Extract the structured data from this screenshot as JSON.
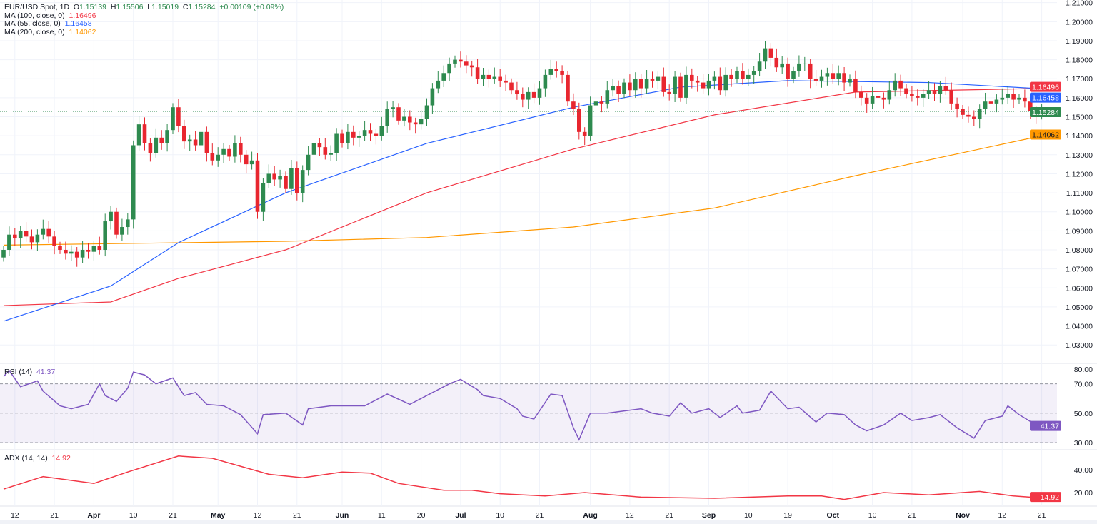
{
  "legend": {
    "symbol": "EUR/USD Spot, 1D",
    "open_label": "O",
    "open": "1.15139",
    "high_label": "H",
    "high": "1.15506",
    "low_label": "L",
    "low": "1.15019",
    "close_label": "C",
    "close": "1.15284",
    "change": "+0.00109 (+0.09%)",
    "ma100_label": "MA (100, close, 0)",
    "ma100_value": "1.16496",
    "ma55_label": "MA (55, close, 0)",
    "ma55_value": "1.16458",
    "ma200_label": "MA (200, close, 0)",
    "ma200_value": "1.14062"
  },
  "rsi_pane": {
    "label": "RSI (14)",
    "value": "41.37"
  },
  "adx_pane": {
    "label": "ADX (14, 14)",
    "value": "14.92"
  },
  "colors": {
    "up": "#2e8a4f",
    "down": "#e8262f",
    "ma100": "#f23645",
    "ma55": "#2962ff",
    "ma200": "#ff9800",
    "rsi": "#7e57c2",
    "adx": "#f23645"
  },
  "chart_data": [
    {
      "type": "candlestick",
      "ylim": [
        1.025,
        1.212
      ],
      "y_ticks": [
        "1.03000",
        "1.04000",
        "1.05000",
        "1.06000",
        "1.07000",
        "1.08000",
        "1.09000",
        "1.10000",
        "1.11000",
        "1.12000",
        "1.13000",
        "1.14000",
        "1.15000",
        "1.16000",
        "1.17000",
        "1.18000",
        "1.19000",
        "1.20000",
        "1.21000"
      ],
      "x_ticks": [
        {
          "label": "12",
          "index": 2
        },
        {
          "label": "21",
          "index": 9
        },
        {
          "label": "Apr",
          "index": 16,
          "bold": true
        },
        {
          "label": "10",
          "index": 23
        },
        {
          "label": "21",
          "index": 30
        },
        {
          "label": "May",
          "index": 38,
          "bold": true
        },
        {
          "label": "12",
          "index": 45
        },
        {
          "label": "21",
          "index": 52
        },
        {
          "label": "Jun",
          "index": 60,
          "bold": true
        },
        {
          "label": "11",
          "index": 67
        },
        {
          "label": "20",
          "index": 74
        },
        {
          "label": "Jul",
          "index": 81,
          "bold": true
        },
        {
          "label": "10",
          "index": 88
        },
        {
          "label": "21",
          "index": 95
        },
        {
          "label": "Aug",
          "index": 104,
          "bold": true
        },
        {
          "label": "12",
          "index": 111
        },
        {
          "label": "21",
          "index": 118
        },
        {
          "label": "Sep",
          "index": 125,
          "bold": true
        },
        {
          "label": "10",
          "index": 132
        },
        {
          "label": "19",
          "index": 139
        },
        {
          "label": "Oct",
          "index": 147,
          "bold": true
        },
        {
          "label": "10",
          "index": 154
        },
        {
          "label": "21",
          "index": 161
        },
        {
          "label": "Nov",
          "index": 170,
          "bold": true
        },
        {
          "label": "12",
          "index": 177
        },
        {
          "label": "21",
          "index": 184
        }
      ],
      "last_open": 1.15139,
      "last_high": 1.15506,
      "last_low": 1.15019,
      "closes": [
        1.08,
        1.088,
        1.086,
        1.09,
        1.087,
        1.084,
        1.088,
        1.091,
        1.087,
        1.082,
        1.08,
        1.078,
        1.079,
        1.076,
        1.08,
        1.079,
        1.082,
        1.08,
        1.095,
        1.1,
        1.088,
        1.092,
        1.096,
        1.135,
        1.146,
        1.136,
        1.131,
        1.139,
        1.136,
        1.143,
        1.155,
        1.145,
        1.137,
        1.138,
        1.135,
        1.142,
        1.131,
        1.127,
        1.13,
        1.133,
        1.129,
        1.136,
        1.13,
        1.125,
        1.127,
        1.1,
        1.115,
        1.12,
        1.117,
        1.119,
        1.112,
        1.123,
        1.11,
        1.122,
        1.13,
        1.136,
        1.134,
        1.13,
        1.131,
        1.141,
        1.136,
        1.142,
        1.139,
        1.14,
        1.143,
        1.141,
        1.14,
        1.145,
        1.154,
        1.155,
        1.148,
        1.15,
        1.147,
        1.146,
        1.149,
        1.156,
        1.165,
        1.169,
        1.173,
        1.178,
        1.18,
        1.179,
        1.177,
        1.176,
        1.17,
        1.172,
        1.17,
        1.171,
        1.169,
        1.168,
        1.164,
        1.162,
        1.159,
        1.163,
        1.16,
        1.165,
        1.172,
        1.175,
        1.174,
        1.172,
        1.158,
        1.154,
        1.142,
        1.14,
        1.156,
        1.158,
        1.157,
        1.164,
        1.166,
        1.162,
        1.168,
        1.164,
        1.17,
        1.165,
        1.17,
        1.169,
        1.171,
        1.163,
        1.162,
        1.171,
        1.16,
        1.172,
        1.169,
        1.168,
        1.165,
        1.169,
        1.171,
        1.164,
        1.172,
        1.17,
        1.174,
        1.17,
        1.172,
        1.174,
        1.179,
        1.186,
        1.181,
        1.176,
        1.178,
        1.17,
        1.174,
        1.178,
        1.178,
        1.17,
        1.169,
        1.171,
        1.173,
        1.17,
        1.173,
        1.168,
        1.17,
        1.163,
        1.16,
        1.157,
        1.161,
        1.16,
        1.159,
        1.164,
        1.169,
        1.165,
        1.162,
        1.161,
        1.16,
        1.162,
        1.164,
        1.162,
        1.166,
        1.164,
        1.157,
        1.154,
        1.151,
        1.15,
        1.149,
        1.154,
        1.158,
        1.157,
        1.159,
        1.16,
        1.162,
        1.159,
        1.16,
        1.158,
        1.153,
        1.1514,
        1.152,
        1.15284
      ],
      "ma100": [
        [
          0,
          1.0507
        ],
        [
          19,
          1.0526
        ],
        [
          31,
          1.065
        ],
        [
          50,
          1.08
        ],
        [
          75,
          1.11
        ],
        [
          101,
          1.133
        ],
        [
          126,
          1.151
        ],
        [
          151,
          1.163
        ],
        [
          185,
          1.16496
        ]
      ],
      "ma55": [
        [
          0,
          1.0425
        ],
        [
          19,
          1.061
        ],
        [
          31,
          1.0838
        ],
        [
          50,
          1.11
        ],
        [
          75,
          1.136
        ],
        [
          101,
          1.155
        ],
        [
          120,
          1.1656
        ],
        [
          139,
          1.169
        ],
        [
          164,
          1.168
        ],
        [
          185,
          1.16458
        ]
      ],
      "ma200": [
        [
          0,
          1.0825
        ],
        [
          25,
          1.0835
        ],
        [
          50,
          1.0845
        ],
        [
          75,
          1.0865
        ],
        [
          101,
          1.092
        ],
        [
          126,
          1.102
        ],
        [
          151,
          1.119
        ],
        [
          185,
          1.14062
        ]
      ]
    },
    {
      "type": "line",
      "name": "RSI (14)",
      "ylim": [
        25,
        85
      ],
      "y_ticks": [
        "80.00",
        "70.00",
        "50.00",
        "30.00"
      ],
      "bands": [
        70,
        50,
        30
      ],
      "points": [
        [
          0,
          75
        ],
        [
          1,
          79
        ],
        [
          3,
          68
        ],
        [
          6,
          72
        ],
        [
          7,
          65
        ],
        [
          10,
          55
        ],
        [
          12,
          53
        ],
        [
          15,
          56
        ],
        [
          17,
          70
        ],
        [
          18,
          62
        ],
        [
          20,
          58
        ],
        [
          22,
          67
        ],
        [
          23,
          78
        ],
        [
          25,
          76
        ],
        [
          27,
          70
        ],
        [
          30,
          74
        ],
        [
          32,
          62
        ],
        [
          34,
          64
        ],
        [
          36,
          56
        ],
        [
          39,
          55
        ],
        [
          42,
          49
        ],
        [
          45,
          36
        ],
        [
          46,
          49
        ],
        [
          50,
          50
        ],
        [
          53,
          42
        ],
        [
          54,
          53
        ],
        [
          58,
          55
        ],
        [
          60,
          55
        ],
        [
          64,
          55
        ],
        [
          68,
          63
        ],
        [
          72,
          56
        ],
        [
          75,
          62
        ],
        [
          79,
          70
        ],
        [
          81,
          73
        ],
        [
          84,
          66
        ],
        [
          85,
          62
        ],
        [
          88,
          60
        ],
        [
          91,
          53
        ],
        [
          92,
          48
        ],
        [
          94,
          46
        ],
        [
          97,
          63
        ],
        [
          99,
          62
        ],
        [
          101,
          40
        ],
        [
          102,
          32
        ],
        [
          104,
          50
        ],
        [
          107,
          50
        ],
        [
          111,
          52
        ],
        [
          113,
          53
        ],
        [
          115,
          50
        ],
        [
          118,
          48
        ],
        [
          120,
          57
        ],
        [
          122,
          50
        ],
        [
          125,
          53
        ],
        [
          127,
          47
        ],
        [
          130,
          55
        ],
        [
          131,
          50
        ],
        [
          134,
          52
        ],
        [
          136,
          65
        ],
        [
          139,
          53
        ],
        [
          141,
          54
        ],
        [
          144,
          44
        ],
        [
          146,
          50
        ],
        [
          149,
          49
        ],
        [
          151,
          42
        ],
        [
          153,
          38
        ],
        [
          156,
          42
        ],
        [
          159,
          50
        ],
        [
          161,
          45
        ],
        [
          164,
          47
        ],
        [
          166,
          49
        ],
        [
          169,
          40
        ],
        [
          172,
          33
        ],
        [
          174,
          45
        ],
        [
          177,
          48
        ],
        [
          178,
          55
        ],
        [
          180,
          49
        ],
        [
          183,
          42
        ],
        [
          185,
          41.37
        ]
      ]
    },
    {
      "type": "line",
      "name": "ADX (14, 14)",
      "ylim": [
        10,
        60
      ],
      "y_ticks": [
        "40.00",
        "20.00"
      ],
      "points": [
        [
          0,
          23
        ],
        [
          7,
          34
        ],
        [
          16,
          28
        ],
        [
          22,
          38
        ],
        [
          31,
          52
        ],
        [
          37,
          50
        ],
        [
          47,
          36
        ],
        [
          53,
          33
        ],
        [
          60,
          38
        ],
        [
          65,
          37
        ],
        [
          70,
          28
        ],
        [
          78,
          22
        ],
        [
          83,
          22
        ],
        [
          88,
          19
        ],
        [
          96,
          17
        ],
        [
          103,
          20
        ],
        [
          113,
          16
        ],
        [
          126,
          15
        ],
        [
          139,
          17
        ],
        [
          145,
          17
        ],
        [
          149,
          14
        ],
        [
          156,
          20
        ],
        [
          164,
          18
        ],
        [
          173,
          21
        ],
        [
          179,
          17
        ],
        [
          185,
          14.92
        ]
      ]
    }
  ]
}
